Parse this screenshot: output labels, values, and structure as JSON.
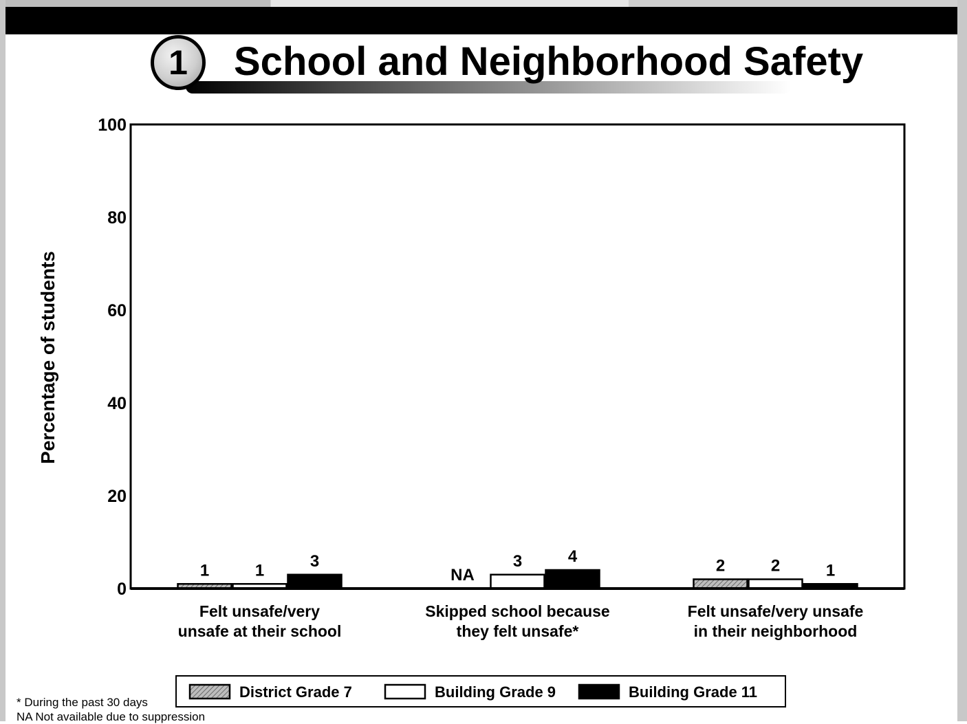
{
  "header": {
    "section_number": "1",
    "title": "School and Neighborhood Safety"
  },
  "chart_data": {
    "type": "bar",
    "ylabel": "Percentage of students",
    "xlabel": "",
    "ylim": [
      0,
      100
    ],
    "yticks": [
      0,
      20,
      40,
      60,
      80,
      100
    ],
    "grid": false,
    "legend_position": "bottom",
    "categories": [
      [
        "Felt unsafe/very",
        "unsafe at their school"
      ],
      [
        "Skipped school because",
        "they felt unsafe*"
      ],
      [
        "Felt unsafe/very unsafe",
        "in their neighborhood"
      ]
    ],
    "series": [
      {
        "name": "District Grade 7",
        "style": "hatched",
        "color": "#9a9a9a",
        "values": [
          1,
          null,
          2
        ],
        "labels": [
          "1",
          "NA",
          "2"
        ]
      },
      {
        "name": "Building Grade 9",
        "style": "outline",
        "color": "#ffffff",
        "values": [
          1,
          3,
          2
        ],
        "labels": [
          "1",
          "3",
          "2"
        ]
      },
      {
        "name": "Building Grade 11",
        "style": "solid",
        "color": "#000000",
        "values": [
          3,
          4,
          1
        ],
        "labels": [
          "3",
          "4",
          "1"
        ]
      }
    ]
  },
  "footnotes": [
    "* During the past 30 days",
    "NA Not available due to suppression"
  ]
}
